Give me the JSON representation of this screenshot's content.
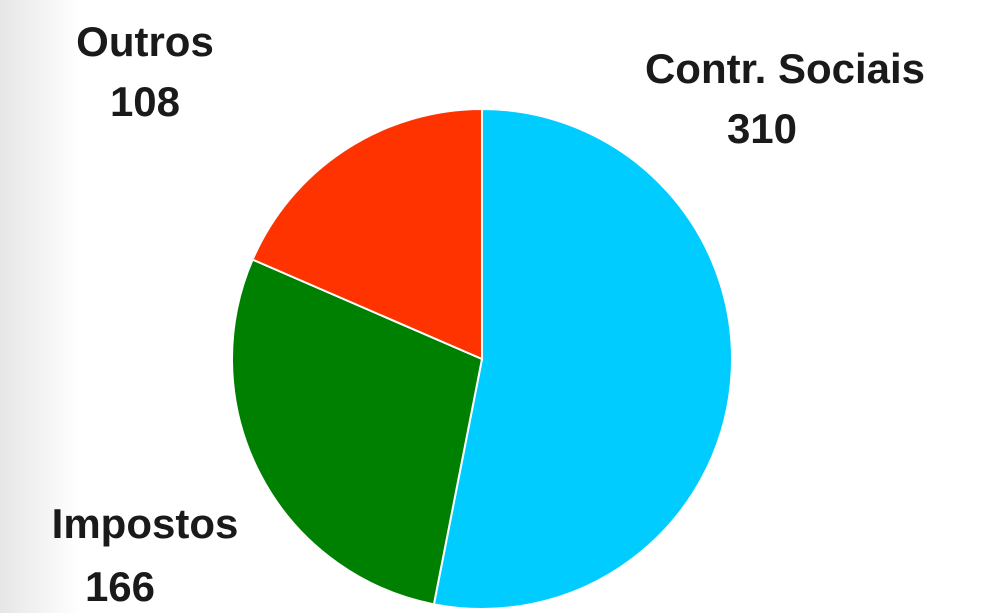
{
  "chart_data": {
    "type": "pie",
    "categories": [
      "Contr. Sociais",
      "Impostos",
      "Outros"
    ],
    "values": [
      310,
      166,
      108
    ],
    "colors": [
      "#00ccff",
      "#008000",
      "#ff3300"
    ]
  }
}
